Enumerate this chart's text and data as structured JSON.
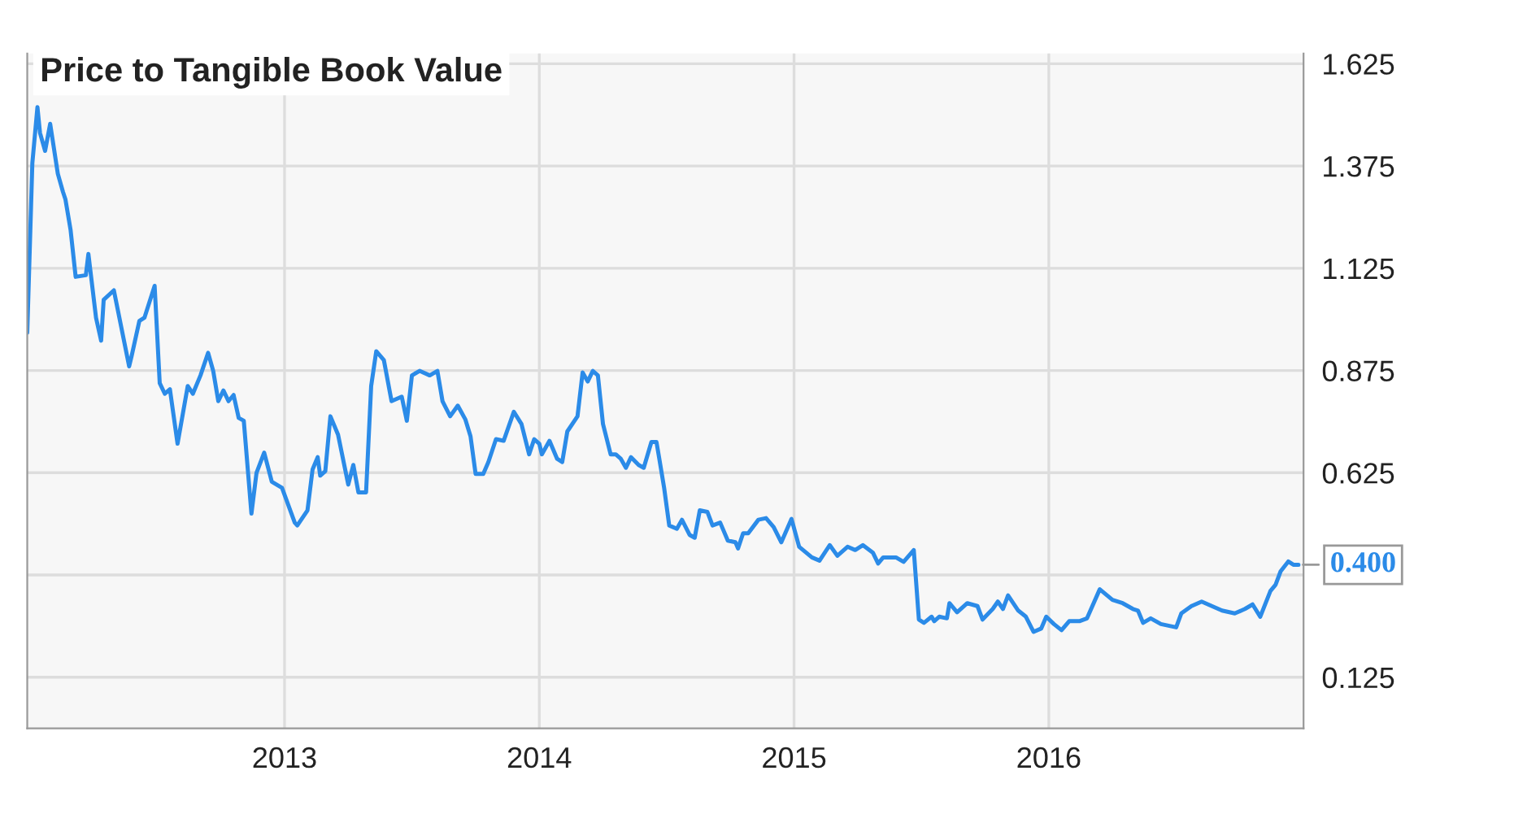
{
  "chart_data": {
    "type": "line",
    "title": "Price to Tangible Book Value",
    "series": [
      {
        "color": "#2b8be8",
        "x": [
          2011.99,
          2012.01,
          2012.03,
          2012.04,
          2012.06,
          2012.08,
          2012.11,
          2012.13,
          2012.14,
          2012.16,
          2012.18,
          2012.22,
          2012.23,
          2012.26,
          2012.28,
          2012.29,
          2012.33,
          2012.39,
          2012.4,
          2012.43,
          2012.45,
          2012.49,
          2012.51,
          2012.53,
          2012.55,
          2012.58,
          2012.62,
          2012.64,
          2012.67,
          2012.7,
          2012.72,
          2012.74,
          2012.76,
          2012.78,
          2012.8,
          2012.82,
          2012.84,
          2012.87,
          2012.89,
          2012.92,
          2012.95,
          2012.99,
          2013.04,
          2013.05,
          2013.09,
          2013.11,
          2013.13,
          2013.14,
          2013.16,
          2013.18,
          2013.21,
          2013.25,
          2013.27,
          2013.29,
          2013.32,
          2013.34,
          2013.36,
          2013.39,
          2013.42,
          2013.46,
          2013.48,
          2013.5,
          2013.53,
          2013.57,
          2013.6,
          2013.62,
          2013.65,
          2013.68,
          2013.71,
          2013.73,
          2013.75,
          2013.78,
          2013.8,
          2013.83,
          2013.86,
          2013.9,
          2013.93,
          2013.96,
          2013.98,
          2014.0,
          2014.01,
          2014.04,
          2014.07,
          2014.09,
          2014.11,
          2014.15,
          2014.17,
          2014.19,
          2014.21,
          2014.23,
          2014.25,
          2014.28,
          2014.3,
          2014.32,
          2014.34,
          2014.36,
          2014.39,
          2014.41,
          2014.44,
          2014.46,
          2014.47,
          2014.49,
          2014.51,
          2014.54,
          2014.56,
          2014.59,
          2014.61,
          2014.63,
          2014.66,
          2014.68,
          2014.71,
          2014.74,
          2014.77,
          2014.78,
          2014.8,
          2014.82,
          2014.86,
          2014.89,
          2014.92,
          2014.95,
          2014.99,
          2015.02,
          2015.07,
          2015.1,
          2015.14,
          2015.17,
          2015.21,
          2015.24,
          2015.27,
          2015.31,
          2015.33,
          2015.35,
          2015.4,
          2015.43,
          2015.47,
          2015.49,
          2015.51,
          2015.54,
          2015.55,
          2015.57,
          2015.6,
          2015.61,
          2015.64,
          2015.68,
          2015.72,
          2015.74,
          2015.78,
          2015.8,
          2015.82,
          2015.84,
          2015.88,
          2015.91,
          2015.94,
          2015.97,
          2015.99,
          2016.02,
          2016.05,
          2016.08,
          2016.12,
          2016.15,
          2016.2,
          2016.25,
          2016.29,
          2016.33,
          2016.35,
          2016.37,
          2016.4,
          2016.44,
          2016.5,
          2016.52,
          2016.56,
          2016.6,
          2016.64,
          2016.68,
          2016.73,
          2016.77,
          2016.8,
          2016.83,
          2016.87,
          2016.89,
          2016.91,
          2016.94,
          2016.96,
          2016.98
        ],
        "values": [
          0.967,
          1.382,
          1.519,
          1.456,
          1.412,
          1.478,
          1.356,
          1.312,
          1.293,
          1.219,
          1.104,
          1.108,
          1.16,
          1.004,
          0.948,
          1.048,
          1.071,
          0.885,
          0.911,
          0.996,
          1.004,
          1.082,
          0.844,
          0.818,
          0.829,
          0.696,
          0.837,
          0.818,
          0.863,
          0.918,
          0.874,
          0.8,
          0.826,
          0.8,
          0.815,
          0.759,
          0.752,
          0.525,
          0.625,
          0.674,
          0.603,
          0.588,
          0.503,
          0.496,
          0.533,
          0.633,
          0.663,
          0.618,
          0.629,
          0.763,
          0.718,
          0.596,
          0.644,
          0.577,
          0.577,
          0.837,
          0.922,
          0.9,
          0.8,
          0.811,
          0.752,
          0.863,
          0.874,
          0.863,
          0.874,
          0.8,
          0.763,
          0.789,
          0.755,
          0.714,
          0.622,
          0.622,
          0.651,
          0.707,
          0.703,
          0.774,
          0.744,
          0.67,
          0.707,
          0.696,
          0.67,
          0.703,
          0.659,
          0.651,
          0.726,
          0.763,
          0.87,
          0.848,
          0.874,
          0.863,
          0.744,
          0.67,
          0.67,
          0.659,
          0.637,
          0.663,
          0.644,
          0.637,
          0.7,
          0.7,
          0.663,
          0.588,
          0.496,
          0.488,
          0.51,
          0.473,
          0.466,
          0.533,
          0.529,
          0.496,
          0.503,
          0.459,
          0.455,
          0.44,
          0.477,
          0.477,
          0.51,
          0.514,
          0.492,
          0.455,
          0.512,
          0.444,
          0.418,
          0.41,
          0.448,
          0.422,
          0.444,
          0.436,
          0.448,
          0.429,
          0.403,
          0.418,
          0.418,
          0.407,
          0.436,
          0.266,
          0.258,
          0.273,
          0.262,
          0.273,
          0.269,
          0.306,
          0.284,
          0.306,
          0.299,
          0.266,
          0.292,
          0.31,
          0.292,
          0.325,
          0.288,
          0.273,
          0.236,
          0.244,
          0.273,
          0.255,
          0.24,
          0.262,
          0.262,
          0.269,
          0.34,
          0.314,
          0.306,
          0.292,
          0.288,
          0.258,
          0.269,
          0.255,
          0.247,
          0.281,
          0.299,
          0.31,
          0.299,
          0.288,
          0.281,
          0.292,
          0.303,
          0.273,
          0.336,
          0.351,
          0.384,
          0.408,
          0.4,
          0.4
        ]
      }
    ],
    "xlim": [
      2011.99,
      2017.0
    ],
    "xticks": [
      2013,
      2014,
      2015,
      2016
    ],
    "ylim": [
      0,
      1.65
    ],
    "yticks": [
      0.125,
      {
        "value": 0.375,
        "label": null
      },
      0.625,
      0.875,
      1.125,
      1.375,
      1.625
    ],
    "grid": true,
    "annotations": [
      {
        "text": "0.400",
        "x": 2016.98,
        "y": 0.4
      }
    ]
  }
}
